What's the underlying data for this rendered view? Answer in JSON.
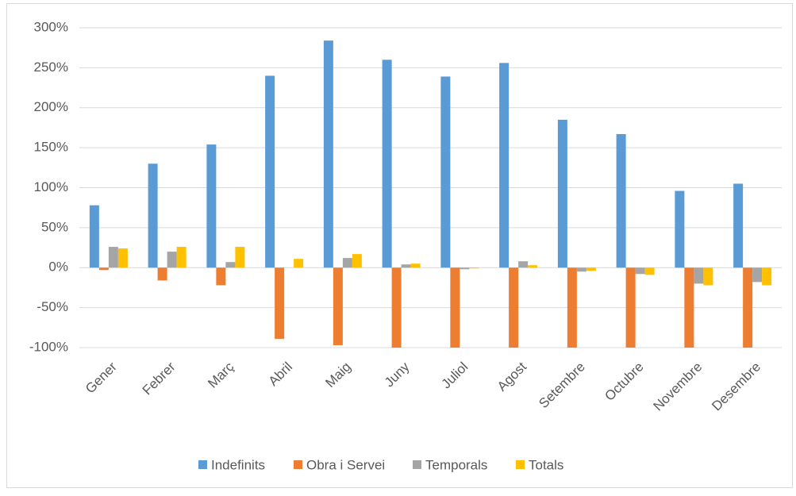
{
  "chart_data": {
    "type": "bar",
    "categories": [
      "Gener",
      "Febrer",
      "Març",
      "Abril",
      "Maig",
      "Juny",
      "Juliol",
      "Agost",
      "Setembre",
      "Octubre",
      "Novembre",
      "Desembre"
    ],
    "series": [
      {
        "name": "Indefinits",
        "color": "#5b9bd5",
        "values": [
          78,
          130,
          154,
          240,
          284,
          260,
          239,
          256,
          185,
          167,
          96,
          105
        ]
      },
      {
        "name": "Obra i Servei",
        "color": "#ed7d31",
        "values": [
          -3,
          -16,
          -22,
          -89,
          -97,
          -100,
          -100,
          -100,
          -100,
          -100,
          -100,
          -100
        ]
      },
      {
        "name": "Temporals",
        "color": "#a5a5a5",
        "values": [
          26,
          20,
          7,
          0,
          12,
          4,
          -2,
          8,
          -5,
          -8,
          -20,
          -18
        ]
      },
      {
        "name": "Totals",
        "color": "#ffc000",
        "values": [
          24,
          26,
          26,
          11,
          17,
          5,
          -1,
          3,
          -4,
          -9,
          -22,
          -22
        ]
      }
    ],
    "ylim": [
      -100,
      300
    ],
    "yticks": [
      {
        "value": -100,
        "label": "-100%"
      },
      {
        "value": -50,
        "label": "-50%"
      },
      {
        "value": 0,
        "label": "0%"
      },
      {
        "value": 50,
        "label": "50%"
      },
      {
        "value": 100,
        "label": "100%"
      },
      {
        "value": 150,
        "label": "150%"
      },
      {
        "value": 200,
        "label": "200%"
      },
      {
        "value": 250,
        "label": "250%"
      },
      {
        "value": 300,
        "label": "300%"
      }
    ],
    "grid": true,
    "legend": "bottom"
  }
}
